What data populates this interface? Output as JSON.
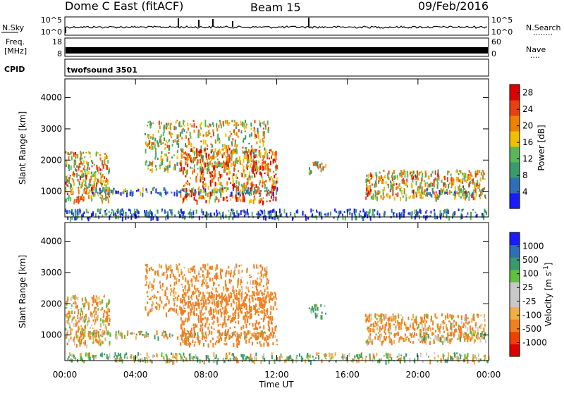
{
  "header": {
    "radar": "Dome C East (fitACF)",
    "beam": "Beam 15",
    "date": "09/Feb/2016"
  },
  "noise_panel": {
    "left_label": "N.Sky",
    "left_ticks": [
      "10^5",
      "10^0"
    ],
    "right_label": "N.Search",
    "right_ticks": [
      "10^5",
      "10^0"
    ],
    "right_dots": "........"
  },
  "freq_panel": {
    "left_label_1": "Freq.",
    "left_label_2": "[MHz]",
    "left_ticks": [
      "18",
      "8"
    ],
    "right_label": "Nave",
    "right_ticks": [
      "60",
      "0"
    ],
    "right_dots": "...."
  },
  "cpid_panel": {
    "label": "CPID",
    "program": "twofsound 3501"
  },
  "colors": {
    "power": [
      "#1a1aff",
      "#2f6fb5",
      "#3a9a6a",
      "#5ab85a",
      "#f0c000",
      "#f08000",
      "#e84010",
      "#e00000"
    ],
    "velocity": [
      "#e00000",
      "#f04000",
      "#f08020",
      "#f0b040",
      "#c8c8c8",
      "#c8c8c8",
      "#60c040",
      "#3a9a6a",
      "#2f6fb5",
      "#1a1aff"
    ]
  },
  "chart_data": [
    {
      "type": "heatmap",
      "title": "",
      "xlabel": "Time UT",
      "ylabel": "Slant Range [km]",
      "x_ticks": [
        "00:00",
        "04:00",
        "08:00",
        "12:00",
        "16:00",
        "20:00",
        "00:00"
      ],
      "y_ticks": [
        1000,
        2000,
        3000,
        4000
      ],
      "ylim": [
        180,
        4600
      ],
      "colorbar_label": "Power [dB]",
      "colorbar_ticks": [
        4,
        8,
        12,
        16,
        20,
        24,
        28
      ],
      "colorbar_range": [
        0,
        30
      ],
      "echo_regions": [
        {
          "t_start_h": 0.0,
          "t_end_h": 2.5,
          "range_km": [
            700,
            2300
          ],
          "value": 18
        },
        {
          "t_start_h": 1.5,
          "t_end_h": 12.0,
          "range_km": [
            950,
            1150
          ],
          "value": 8
        },
        {
          "t_start_h": 4.5,
          "t_end_h": 11.5,
          "range_km": [
            1700,
            3300
          ],
          "value": 16
        },
        {
          "t_start_h": 6.5,
          "t_end_h": 12.0,
          "range_km": [
            700,
            2400
          ],
          "value": 22
        },
        {
          "t_start_h": 13.8,
          "t_end_h": 14.8,
          "range_km": [
            1600,
            2000
          ],
          "value": 18
        },
        {
          "t_start_h": 17.0,
          "t_end_h": 23.8,
          "range_km": [
            800,
            1700
          ],
          "value": 18
        },
        {
          "t_start_h": 20.0,
          "t_end_h": 23.8,
          "range_km": [
            900,
            1100
          ],
          "value": 10
        },
        {
          "t_start_h": 0.0,
          "t_end_h": 24.0,
          "range_km": [
            180,
            450
          ],
          "value": 6
        }
      ]
    },
    {
      "type": "heatmap",
      "title": "",
      "xlabel": "Time UT",
      "ylabel": "Slant Range [km]",
      "x_ticks": [
        "00:00",
        "04:00",
        "08:00",
        "12:00",
        "16:00",
        "20:00",
        "00:00"
      ],
      "y_ticks": [
        1000,
        2000,
        3000,
        4000
      ],
      "ylim": [
        180,
        4600
      ],
      "colorbar_label": "Velocity [m s^-1]",
      "colorbar_ticks": [
        "1000",
        "500",
        "100",
        "25",
        "-25",
        "-100",
        "-500",
        "-1000"
      ],
      "colorbar_range": [
        -1000,
        1000
      ],
      "echo_regions": [
        {
          "t_start_h": 0.0,
          "t_end_h": 2.5,
          "range_km": [
            700,
            2300
          ],
          "value": -100
        },
        {
          "t_start_h": 1.5,
          "t_end_h": 12.0,
          "range_km": [
            950,
            1150
          ],
          "value": 0
        },
        {
          "t_start_h": 4.5,
          "t_end_h": 11.5,
          "range_km": [
            1700,
            3300
          ],
          "value": -200
        },
        {
          "t_start_h": 6.5,
          "t_end_h": 12.0,
          "range_km": [
            700,
            2400
          ],
          "value": -300
        },
        {
          "t_start_h": 13.8,
          "t_end_h": 14.8,
          "range_km": [
            1600,
            2000
          ],
          "value": 150
        },
        {
          "t_start_h": 17.0,
          "t_end_h": 23.8,
          "range_km": [
            800,
            1700
          ],
          "value": -150
        },
        {
          "t_start_h": 20.0,
          "t_end_h": 23.8,
          "range_km": [
            900,
            1100
          ],
          "value": 0
        },
        {
          "t_start_h": 0.0,
          "t_end_h": 24.0,
          "range_km": [
            180,
            450
          ],
          "value": 50
        }
      ]
    }
  ]
}
